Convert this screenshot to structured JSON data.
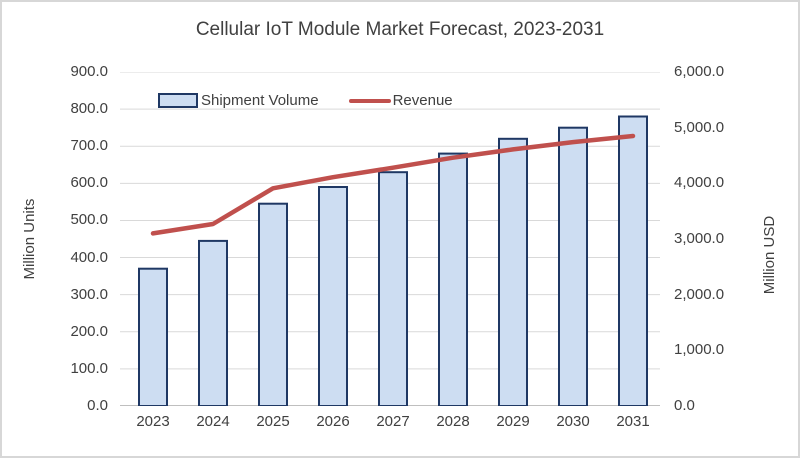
{
  "frame": {
    "background": "#ffffff",
    "border_color": "#d7d7d7"
  },
  "chart_data": {
    "type": "combo",
    "title": "Cellular IoT Module Market Forecast, 2023-2031",
    "categories": [
      "2023",
      "2024",
      "2025",
      "2026",
      "2027",
      "2028",
      "2029",
      "2030",
      "2031"
    ],
    "series": [
      {
        "name": "Shipment Volume",
        "type": "bar",
        "axis": "left",
        "values": [
          370,
          445,
          545,
          590,
          630,
          680,
          720,
          750,
          780
        ],
        "fill_color": "#cdddf2",
        "border_color": "#1f3864"
      },
      {
        "name": "Revenue",
        "type": "line",
        "axis": "right",
        "values": [
          3100,
          3270,
          3910,
          4110,
          4280,
          4460,
          4610,
          4740,
          4850
        ],
        "line_color": "#c0504d"
      }
    ],
    "left_axis": {
      "label": "Million Units",
      "min": 0,
      "max": 900,
      "step": 100,
      "tick_labels": [
        "900.0",
        "800.0",
        "700.0",
        "600.0",
        "500.0",
        "400.0",
        "300.0",
        "200.0",
        "100.0",
        "0.0"
      ]
    },
    "right_axis": {
      "label": "Million USD",
      "min": 0,
      "max": 6000,
      "step": 1000,
      "tick_labels": [
        "6,000.0",
        "5,000.0",
        "4,000.0",
        "3,000.0",
        "2,000.0",
        "1,000.0",
        "0.0"
      ]
    },
    "grid": true,
    "legend_position": "top-inside",
    "colors": {
      "gridline": "#d9d9d9",
      "baseline": "#bfbfbf",
      "text": "#404040"
    }
  }
}
